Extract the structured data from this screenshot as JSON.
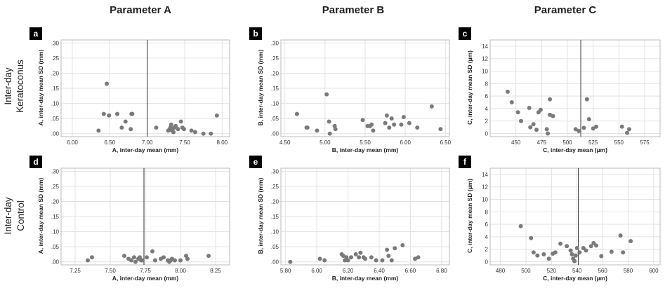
{
  "columns": [
    "Parameter  A",
    "Parameter B",
    "Parameter C"
  ],
  "rows": [
    {
      "line1": "Inter-day",
      "line2": "Keratoconus"
    },
    {
      "line1": "Inter-day",
      "line2": "Control"
    }
  ],
  "chart_data": [
    {
      "panel": "a",
      "type": "scatter",
      "xlabel": "A, inter-day mean (mm)",
      "ylabel": "A, inter-day mean SD (mm)",
      "xlim": [
        5.85,
        8.1
      ],
      "ylim": [
        -0.01,
        0.31
      ],
      "xticks": [
        6.0,
        6.5,
        7.0,
        7.5,
        8.0
      ],
      "xtick_labels": [
        "6.00",
        "6.50",
        "7.00",
        "7.50",
        "8.00"
      ],
      "yticks": [
        0,
        0.05,
        0.1,
        0.15,
        0.2,
        0.25,
        0.3
      ],
      "ytick_labels": [
        ".00",
        ".05",
        ".10",
        ".15",
        ".20",
        ".25",
        ".30"
      ],
      "vline": 7.0,
      "x": [
        6.35,
        6.42,
        6.46,
        6.49,
        6.6,
        6.66,
        6.71,
        6.78,
        6.79,
        6.8,
        7.12,
        7.28,
        7.3,
        7.31,
        7.32,
        7.33,
        7.35,
        7.36,
        7.38,
        7.41,
        7.45,
        7.47,
        7.49,
        7.59,
        7.64,
        7.75,
        7.85,
        7.93
      ],
      "y": [
        0.01,
        0.065,
        0.165,
        0.06,
        0.065,
        0.02,
        0.04,
        0.015,
        0.065,
        0.065,
        0.02,
        0.01,
        0.015,
        0.02,
        0.03,
        0.01,
        0.005,
        0.02,
        0.025,
        0.015,
        0.04,
        0.02,
        0.015,
        0.01,
        0.005,
        0.0,
        0.0,
        0.06
      ]
    },
    {
      "panel": "b",
      "type": "scatter",
      "xlabel": "B, inter-day mean (mm)",
      "ylabel": "B, inter-day mean SD (mm)",
      "xlim": [
        4.45,
        6.55
      ],
      "ylim": [
        -0.01,
        0.31
      ],
      "xticks": [
        4.5,
        5.0,
        5.5,
        6.0,
        6.5
      ],
      "xtick_labels": [
        "4.50",
        "5.00",
        "5.50",
        "6.00",
        "6.50"
      ],
      "yticks": [
        0,
        0.05,
        0.1,
        0.15,
        0.2,
        0.25,
        0.3
      ],
      "ytick_labels": [
        ".00",
        ".05",
        ".10",
        ".15",
        ".20",
        ".25",
        ".30"
      ],
      "x": [
        4.65,
        4.77,
        4.78,
        4.9,
        5.02,
        5.05,
        5.06,
        5.12,
        5.13,
        5.47,
        5.53,
        5.56,
        5.58,
        5.6,
        5.75,
        5.77,
        5.8,
        5.83,
        5.86,
        5.95,
        5.98,
        6.05,
        6.15,
        6.33,
        6.44
      ],
      "y": [
        0.065,
        0.02,
        0.02,
        0.01,
        0.13,
        0.04,
        0.0,
        0.025,
        0.015,
        0.045,
        0.025,
        0.025,
        0.03,
        0.01,
        0.035,
        0.06,
        0.02,
        0.05,
        0.03,
        0.03,
        0.055,
        0.035,
        0.02,
        0.09,
        0.015
      ]
    },
    {
      "panel": "c",
      "type": "scatter",
      "xlabel": "C, inter-day mean (µm)",
      "ylabel": "C, inter-day mean SD (µm)",
      "xlim": [
        425,
        590
      ],
      "ylim": [
        -0.5,
        15
      ],
      "xticks": [
        450,
        475,
        500,
        525,
        550,
        575
      ],
      "xtick_labels": [
        "450",
        "475",
        "500",
        "525",
        "550",
        "575"
      ],
      "yticks": [
        0,
        2,
        4,
        6,
        8,
        10,
        12,
        14
      ],
      "ytick_labels": [
        "0",
        "2",
        "4",
        "6",
        "8",
        "10",
        "12",
        "14"
      ],
      "vline": 513,
      "x": [
        442,
        446,
        452,
        455,
        463,
        464,
        467,
        470,
        472,
        474,
        480,
        481,
        483,
        483,
        486,
        508,
        511,
        516,
        519,
        521,
        525,
        528,
        553,
        558,
        560
      ],
      "y": [
        6.7,
        5.0,
        3.4,
        2.0,
        4.1,
        1.0,
        1.5,
        0.6,
        3.4,
        3.8,
        0.7,
        0.0,
        5.5,
        3.0,
        2.8,
        0.7,
        0.4,
        0.9,
        5.5,
        2.3,
        0.8,
        1.1,
        1.1,
        0.1,
        0.7
      ]
    },
    {
      "panel": "d",
      "type": "scatter",
      "xlabel": "A, inter-day mean (mm)",
      "ylabel": "A, inter-day mean SD (mm)",
      "xlim": [
        7.15,
        8.35
      ],
      "ylim": [
        -0.01,
        0.31
      ],
      "xticks": [
        7.25,
        7.5,
        7.75,
        8.0,
        8.25
      ],
      "xtick_labels": [
        "7.25",
        "7.50",
        "7.75",
        "8.00",
        "8.25"
      ],
      "yticks": [
        0,
        0.05,
        0.1,
        0.15,
        0.2,
        0.25,
        0.3
      ],
      "ytick_labels": [
        ".00",
        ".05",
        ".10",
        ".15",
        ".20",
        ".25",
        ".30"
      ],
      "vline": 7.74,
      "x": [
        7.34,
        7.37,
        7.6,
        7.63,
        7.65,
        7.67,
        7.68,
        7.7,
        7.71,
        7.72,
        7.73,
        7.76,
        7.8,
        7.82,
        7.86,
        7.88,
        7.91,
        7.92,
        7.93,
        7.94,
        7.96,
        8.0,
        8.04,
        8.05,
        8.2
      ],
      "y": [
        0.005,
        0.015,
        0.02,
        0.01,
        0.005,
        0.015,
        0.0,
        0.01,
        0.015,
        0.005,
        0.005,
        0.015,
        0.035,
        0.005,
        0.01,
        0.015,
        0.005,
        0.0,
        0.005,
        0.01,
        0.005,
        0.005,
        0.02,
        0.01,
        0.02
      ]
    },
    {
      "panel": "e",
      "type": "scatter",
      "xlabel": "B, inter-day mean (mm)",
      "ylabel": "B, inter-day mean SD (mm)",
      "xlim": [
        5.77,
        6.85
      ],
      "ylim": [
        -0.01,
        0.31
      ],
      "xticks": [
        5.8,
        6.0,
        6.2,
        6.4,
        6.6,
        6.8
      ],
      "xtick_labels": [
        "5.80",
        "6.00",
        "6.20",
        "6.40",
        "6.60",
        "6.80"
      ],
      "yticks": [
        0,
        0.05,
        0.1,
        0.15,
        0.2,
        0.25,
        0.3
      ],
      "ytick_labels": [
        ".00",
        ".05",
        ".10",
        ".15",
        ".20",
        ".25",
        ".30"
      ],
      "x": [
        5.83,
        6.02,
        6.05,
        6.16,
        6.17,
        6.18,
        6.19,
        6.2,
        6.22,
        6.25,
        6.27,
        6.28,
        6.3,
        6.31,
        6.35,
        6.38,
        6.42,
        6.45,
        6.46,
        6.48,
        6.5,
        6.55,
        6.63,
        6.65
      ],
      "y": [
        0.0,
        0.01,
        0.005,
        0.025,
        0.02,
        0.005,
        0.015,
        0.005,
        0.015,
        0.025,
        0.015,
        0.03,
        0.015,
        0.01,
        0.015,
        0.005,
        0.005,
        0.04,
        0.02,
        0.005,
        0.045,
        0.055,
        0.01,
        0.015
      ]
    },
    {
      "panel": "f",
      "type": "scatter",
      "xlabel": "C, inter-day mean (µm)",
      "ylabel": "C, inter-day mean SD (µm)",
      "xlim": [
        472,
        605
      ],
      "ylim": [
        -0.5,
        15
      ],
      "xticks": [
        480,
        500,
        520,
        540,
        560,
        580,
        600
      ],
      "xtick_labels": [
        "480",
        "500",
        "520",
        "540",
        "560",
        "580",
        "600"
      ],
      "yticks": [
        0,
        2,
        4,
        6,
        8,
        10,
        12,
        14
      ],
      "ytick_labels": [
        "0",
        "2",
        "4",
        "6",
        "8",
        "10",
        "12",
        "14"
      ],
      "vline": 541,
      "x": [
        496,
        504,
        506,
        509,
        514,
        518,
        521,
        523,
        527,
        532,
        535,
        536,
        537,
        538,
        539,
        540,
        542,
        545,
        547,
        551,
        553,
        555,
        559,
        567,
        574,
        576,
        582
      ],
      "y": [
        5.7,
        3.8,
        1.5,
        1.0,
        1.2,
        0.5,
        1.3,
        1.5,
        2.9,
        2.5,
        1.8,
        1.2,
        0.5,
        0.1,
        1.0,
        2.2,
        1.5,
        2.2,
        1.8,
        2.5,
        3.0,
        2.6,
        0.9,
        1.6,
        4.2,
        1.5,
        3.3
      ]
    }
  ]
}
